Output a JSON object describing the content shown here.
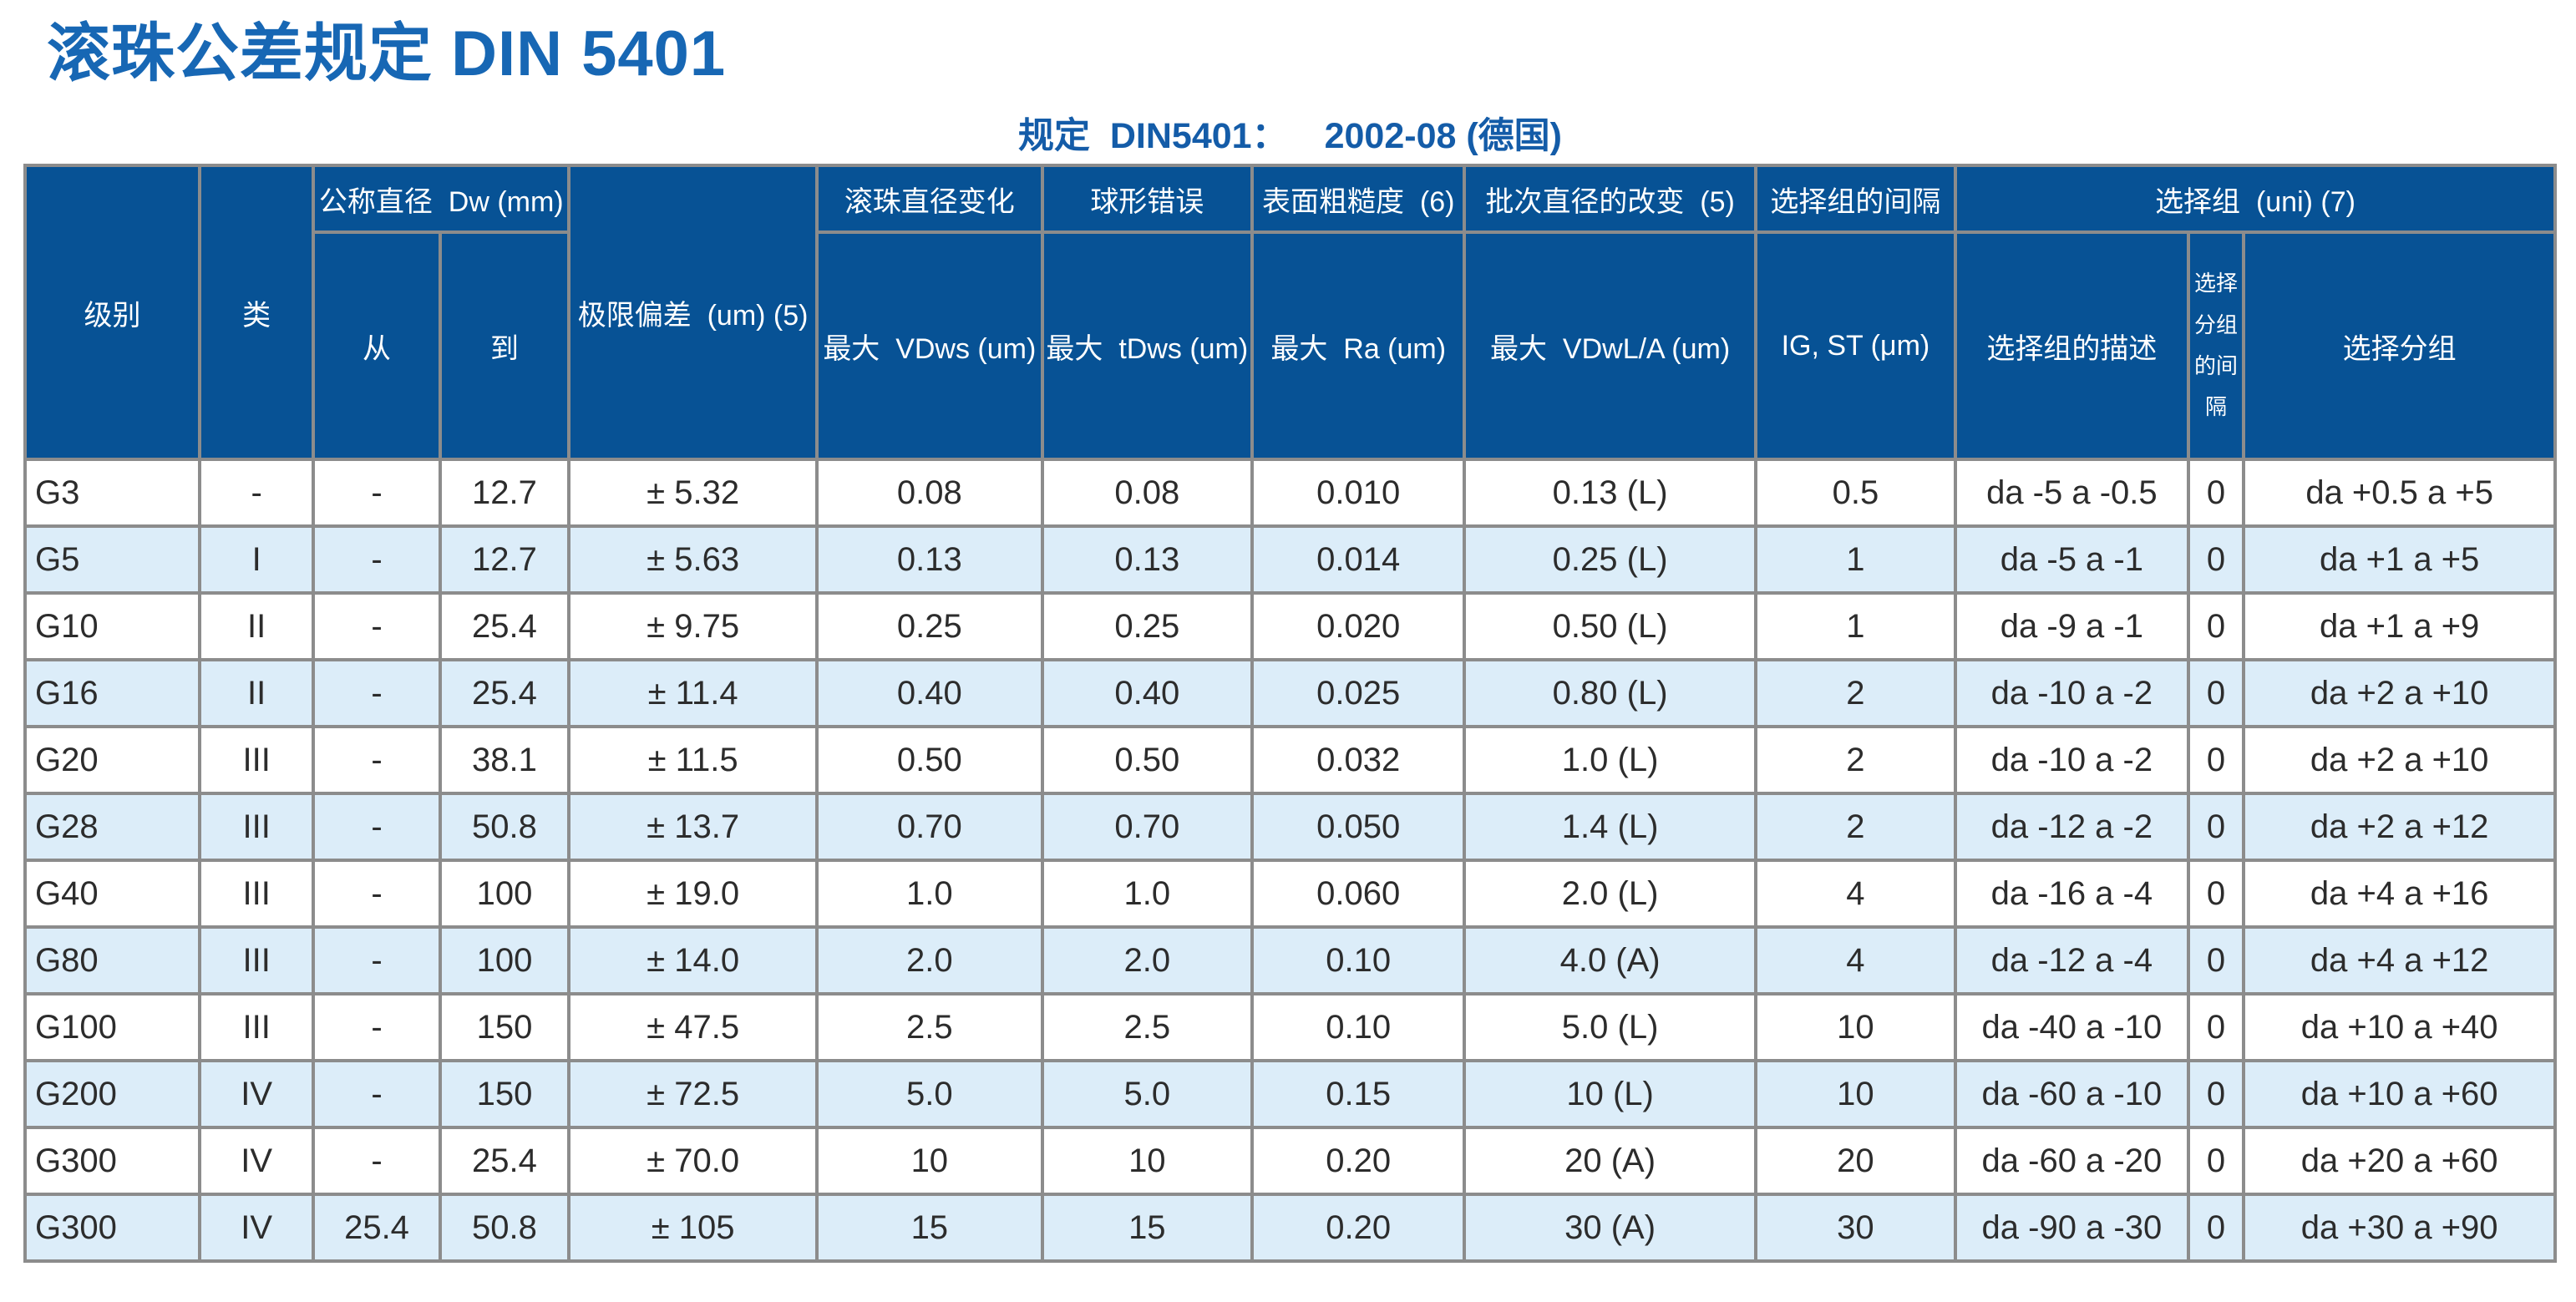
{
  "page_title": "滚珠公差规定 DIN 5401",
  "subtitle": {
    "label": "规定  DIN5401：",
    "value": "2002-08 (德国)"
  },
  "colors": {
    "title_blue": "#1767B4",
    "subtitle_blue": "#145CA8",
    "header_bg": "#075295",
    "row_alt": "#DCEDF9",
    "border": "#8C8C8C",
    "text": "#2C2C2C"
  },
  "table": {
    "header": {
      "col_level": "级别",
      "col_class": "类",
      "group_nominal_diameter": "公称直径  Dw (mm)",
      "col_from": "从",
      "col_to": "到",
      "col_limit_deviation": "极限偏差  (um) (5)",
      "group_ball_diameter_variation": "滚珠直径变化",
      "sub_vdws": "最大  VDws (um)",
      "group_sphericity_error": "球形错误",
      "sub_tdws": "最大  tDws (um)",
      "group_surface_roughness": "表面粗糙度  (6)",
      "sub_ra": "最大  Ra (um)",
      "group_lot_diameter_variation": "批次直径的改变  (5)",
      "sub_vdwl": "最大  VDwL/A (um)",
      "col_gauge_interval": "选择组的间隔",
      "sub_ig_st": "IG, ST (μm)",
      "group_selection": "选择组  (uni) (7)",
      "sub_selection_desc": "选择组的描述",
      "sub_subgroup_interval": "选择分组的间隔",
      "sub_selection_group": "选择分组"
    },
    "rows": [
      [
        "G3",
        "-",
        "-",
        "12.7",
        "± 5.32",
        "0.08",
        "0.08",
        "0.010",
        "0.13 (L)",
        "0.5",
        "da -5 a -0.5",
        "0",
        "da +0.5 a +5"
      ],
      [
        "G5",
        "I",
        "-",
        "12.7",
        "± 5.63",
        "0.13",
        "0.13",
        "0.014",
        "0.25 (L)",
        "1",
        "da -5 a -1",
        "0",
        "da +1 a +5"
      ],
      [
        "G10",
        "II",
        "-",
        "25.4",
        "± 9.75",
        "0.25",
        "0.25",
        "0.020",
        "0.50 (L)",
        "1",
        "da -9 a -1",
        "0",
        "da +1 a +9"
      ],
      [
        "G16",
        "II",
        "-",
        "25.4",
        "± 11.4",
        "0.40",
        "0.40",
        "0.025",
        "0.80 (L)",
        "2",
        "da -10 a -2",
        "0",
        "da +2 a +10"
      ],
      [
        "G20",
        "III",
        "-",
        "38.1",
        "± 11.5",
        "0.50",
        "0.50",
        "0.032",
        "1.0 (L)",
        "2",
        "da -10 a -2",
        "0",
        "da +2 a +10"
      ],
      [
        "G28",
        "III",
        "-",
        "50.8",
        "± 13.7",
        "0.70",
        "0.70",
        "0.050",
        "1.4 (L)",
        "2",
        "da -12 a -2",
        "0",
        "da +2 a +12"
      ],
      [
        "G40",
        "III",
        "-",
        "100",
        "± 19.0",
        "1.0",
        "1.0",
        "0.060",
        "2.0 (L)",
        "4",
        "da -16 a -4",
        "0",
        "da +4 a +16"
      ],
      [
        "G80",
        "III",
        "-",
        "100",
        "± 14.0",
        "2.0",
        "2.0",
        "0.10",
        "4.0 (A)",
        "4",
        "da -12 a -4",
        "0",
        "da +4 a +12"
      ],
      [
        "G100",
        "III",
        "-",
        "150",
        "± 47.5",
        "2.5",
        "2.5",
        "0.10",
        "5.0 (L)",
        "10",
        "da -40 a -10",
        "0",
        "da +10 a +40"
      ],
      [
        "G200",
        "IV",
        "-",
        "150",
        "± 72.5",
        "5.0",
        "5.0",
        "0.15",
        "10 (L)",
        "10",
        "da -60 a -10",
        "0",
        "da +10 a +60"
      ],
      [
        "G300",
        "IV",
        "-",
        "25.4",
        "± 70.0",
        "10",
        "10",
        "0.20",
        "20 (A)",
        "20",
        "da -60 a -20",
        "0",
        "da +20 a +60"
      ],
      [
        "G300",
        "IV",
        "25.4",
        "50.8",
        "± 105",
        "15",
        "15",
        "0.20",
        "30 (A)",
        "30",
        "da -90 a -30",
        "0",
        "da +30 a +90"
      ]
    ]
  }
}
